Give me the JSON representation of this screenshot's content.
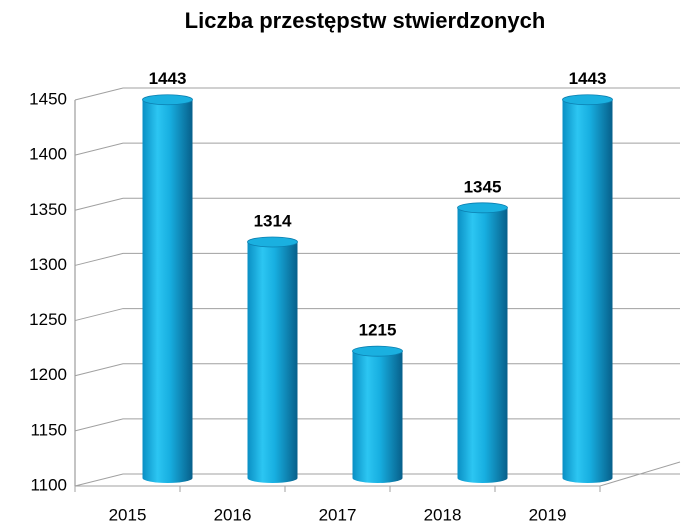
{
  "chart_data": {
    "type": "bar",
    "title": "Liczba przestępstw stwierdzonych",
    "categories": [
      "2015",
      "2016",
      "2017",
      "2018",
      "2019"
    ],
    "values": [
      1443,
      1314,
      1215,
      1345,
      1443
    ],
    "color": "#1ab0e0",
    "ylim": [
      1100,
      1450
    ],
    "yticks": [
      1100,
      1150,
      1200,
      1250,
      1300,
      1350,
      1400,
      1450
    ],
    "grid": true
  }
}
